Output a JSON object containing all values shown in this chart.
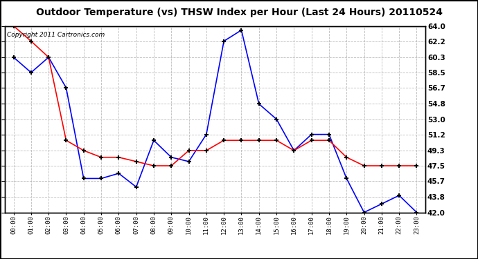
{
  "title": "Outdoor Temperature (vs) THSW Index per Hour (Last 24 Hours) 20110524",
  "copyright": "Copyright 2011 Cartronics.com",
  "hours": [
    "00:00",
    "01:00",
    "02:00",
    "03:00",
    "04:00",
    "05:00",
    "06:00",
    "07:00",
    "08:00",
    "09:00",
    "10:00",
    "11:00",
    "12:00",
    "13:00",
    "14:00",
    "15:00",
    "16:00",
    "17:00",
    "18:00",
    "19:00",
    "20:00",
    "21:00",
    "22:00",
    "23:00"
  ],
  "blue_data": [
    60.3,
    58.5,
    60.3,
    56.7,
    46.0,
    46.0,
    46.6,
    45.0,
    50.5,
    48.5,
    48.0,
    51.2,
    62.2,
    63.5,
    54.8,
    53.0,
    49.3,
    51.2,
    51.2,
    46.0,
    42.0,
    43.0,
    44.0,
    42.0
  ],
  "red_data": [
    64.0,
    62.2,
    60.3,
    50.5,
    49.3,
    48.5,
    48.5,
    48.0,
    47.5,
    47.5,
    49.3,
    49.3,
    50.5,
    50.5,
    50.5,
    50.5,
    49.3,
    50.5,
    50.5,
    48.5,
    47.5,
    47.5,
    47.5,
    47.5
  ],
  "ylim": [
    42.0,
    64.0
  ],
  "yticks": [
    42.0,
    43.8,
    45.7,
    47.5,
    49.3,
    51.2,
    53.0,
    54.8,
    56.7,
    58.5,
    60.3,
    62.2,
    64.0
  ],
  "blue_color": "#0000FF",
  "red_color": "#FF0000",
  "bg_color": "#FFFFFF",
  "plot_bg": "#FFFFFF",
  "grid_color": "#BBBBBB",
  "title_fontsize": 10,
  "copyright_fontsize": 6.5,
  "outer_border_color": "#000000"
}
